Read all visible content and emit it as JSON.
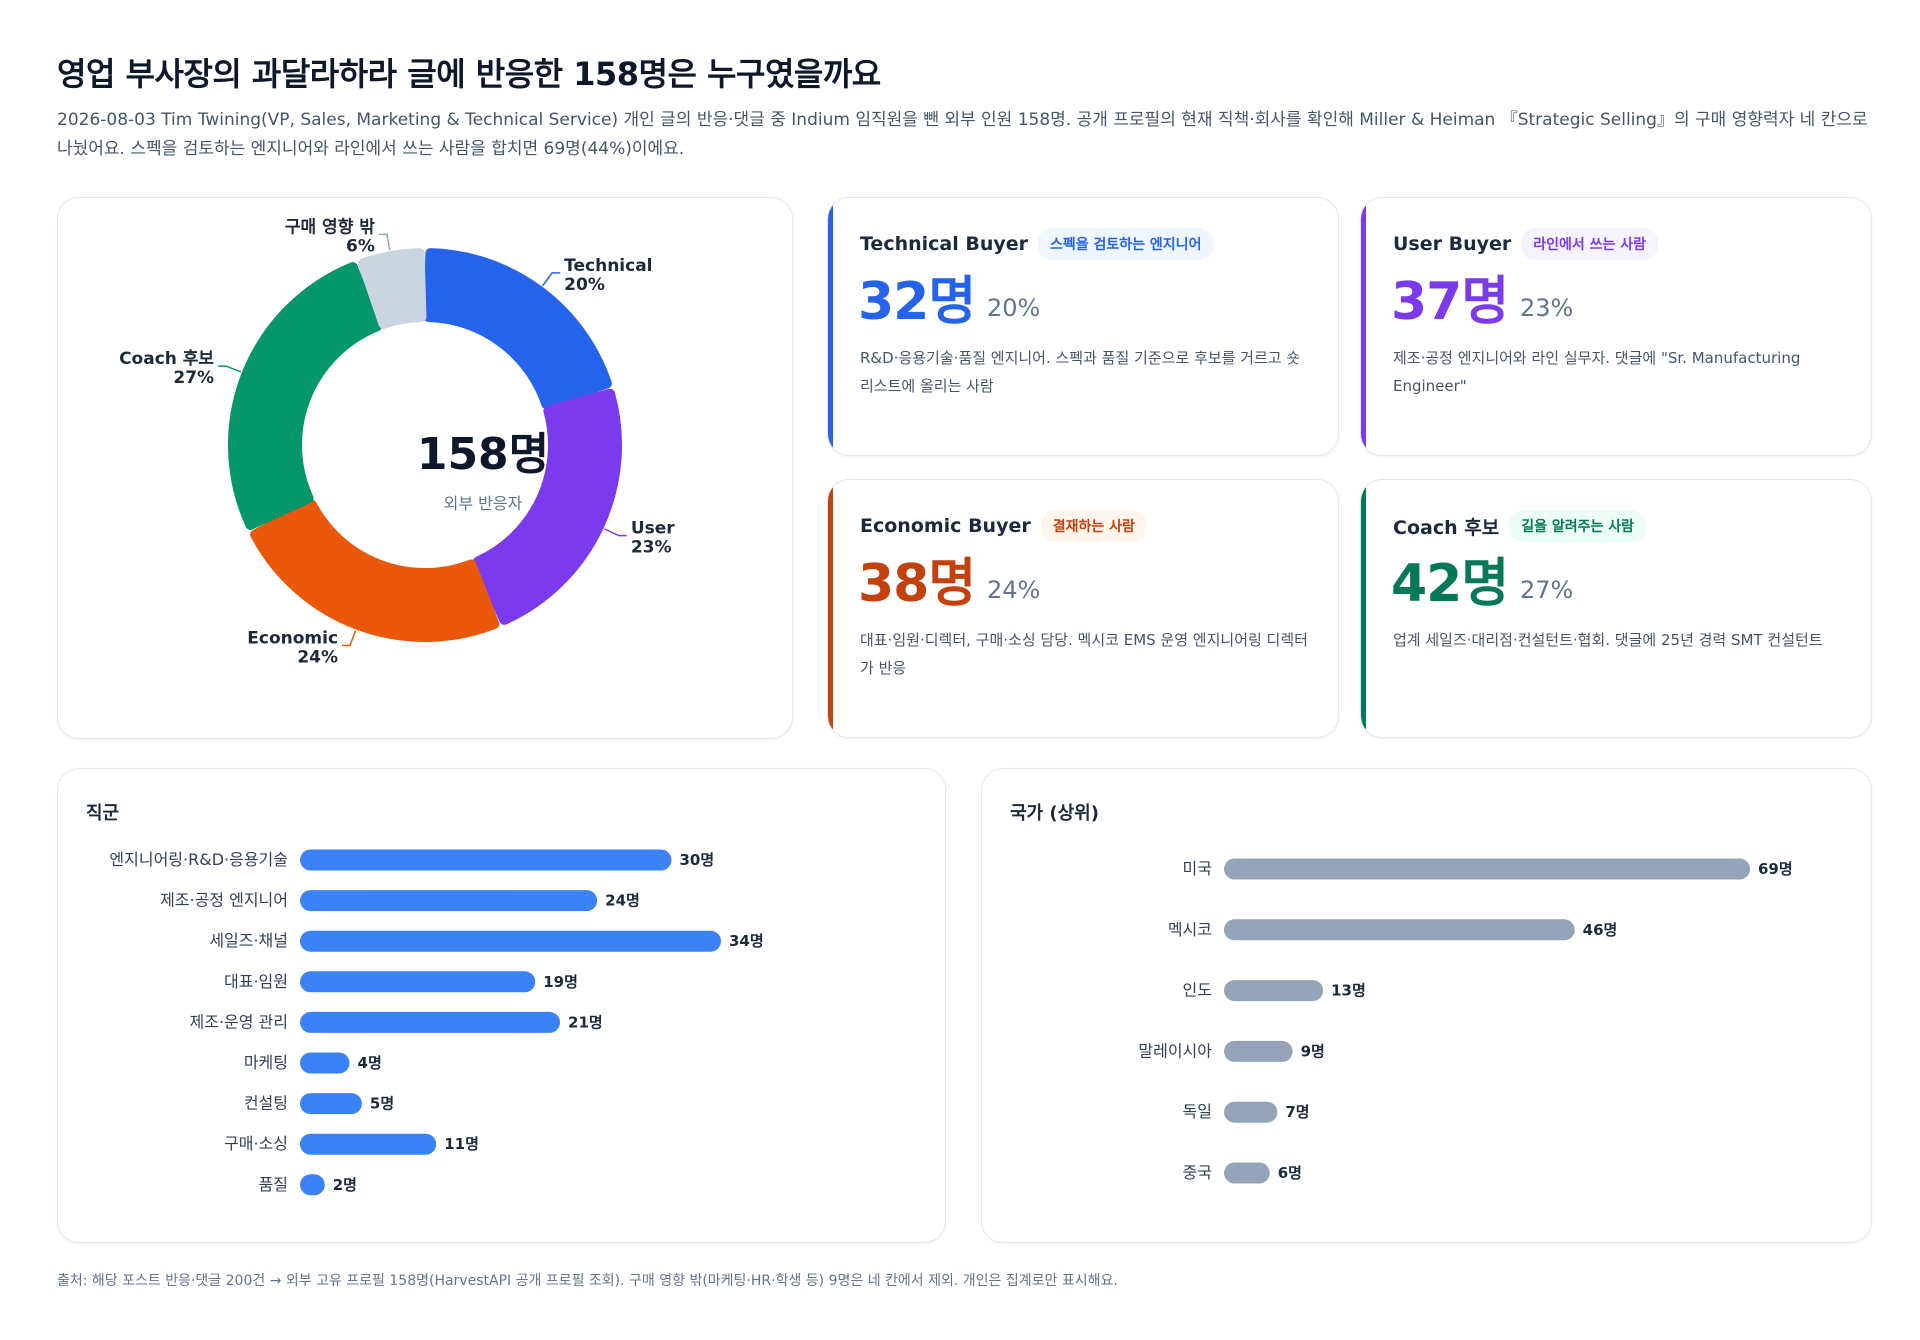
{
  "header": {
    "title": "영업 부사장의 과달라하라 글에 반응한 158명은 누구였을까요",
    "subtitle": "2026-08-03 Tim Twining(VP, Sales, Marketing & Technical Service) 개인 글의 반응·댓글 중 Indium 임직원을 뺀 외부 인원 158명. 공개 프로필의 현재 직책·회사를 확인해 Miller & Heiman 『Strategic Selling』의 구매 영향력자 네 칸으로 나눴어요. 스펙을 검토하는 엔지니어와 라인에서 쓰는 사람을 합치면 69명(44%)이에요."
  },
  "donut": {
    "center_total": "158명",
    "center_label": "외부 반응자",
    "labels": [
      {
        "name": "Technical",
        "pct": "20%"
      },
      {
        "name": "User",
        "pct": "23%"
      },
      {
        "name": "Economic",
        "pct": "24%"
      },
      {
        "name": "Coach 후보",
        "pct": "27%"
      },
      {
        "name": "구매 영향 밖",
        "pct": "6%"
      }
    ]
  },
  "buyers": [
    {
      "name": "Technical Buyer",
      "tag": "스펙을 검토하는 엔지니어",
      "count": "32명",
      "pct": "20%",
      "desc": "R&D·응용기술·품질 엔지니어. 스펙과 품질 기준으로 후보를 거르고 숏리스트에 올리는 사람",
      "color": "#2563eb",
      "tag_bg": "#eff6ff"
    },
    {
      "name": "User Buyer",
      "tag": "라인에서 쓰는 사람",
      "count": "37명",
      "pct": "23%",
      "desc": "제조·공정 엔지니어와 라인 실무자. 댓글에 \"Sr. Manufacturing Engineer\"",
      "color": "#7c3aed",
      "tag_bg": "#f5f3ff"
    },
    {
      "name": "Economic Buyer",
      "tag": "결재하는 사람",
      "count": "38명",
      "pct": "24%",
      "desc": "대표·임원·디렉터, 구매·소싱 담당. 멕시코 EMS 운영 엔지니어링 디렉터가 반응",
      "color": "#c2410c",
      "tag_bg": "#fff7ed"
    },
    {
      "name": "Coach 후보",
      "tag": "길을 알려주는 사람",
      "count": "42명",
      "pct": "27%",
      "desc": "업계 세일즈·대리점·컨설턴트·협회. 댓글에 25년 경력 SMT 컨설턴트",
      "color": "#047857",
      "tag_bg": "#ecfdf5"
    }
  ],
  "job_panel": {
    "title": "직군",
    "value_suffix": "명"
  },
  "country_panel": {
    "title": "국가 (상위)",
    "value_suffix": "명"
  },
  "footer": {
    "note": "출처: 해당 포스트 반응·댓글 200건 → 외부 고유 프로필 158명(HarvestAPI 공개 프로필 조회). 구매 영향 밖(마케팅·HR·학생 등) 9명은 네 칸에서 제외. 개인은 집계로만 표시해요."
  },
  "chart_data": [
    {
      "type": "pie",
      "categories": [
        "Technical",
        "User",
        "Economic",
        "Coach 후보",
        "구매 영향 밖"
      ],
      "values": [
        32,
        37,
        38,
        42,
        9
      ],
      "percent": [
        20,
        23,
        24,
        27,
        6
      ],
      "colors": [
        "#2563eb",
        "#7c3aed",
        "#ea580c",
        "#059669",
        "#cbd5e1"
      ],
      "title": "158명"
    },
    {
      "type": "bar",
      "orientation": "horizontal",
      "title": "직군",
      "categories": [
        "엔지니어링·R&D·응용기술",
        "제조·공정 엔지니어",
        "세일즈·채널",
        "대표·임원",
        "제조·운영 관리",
        "마케팅",
        "컨설팅",
        "구매·소싱",
        "품질"
      ],
      "values": [
        30,
        24,
        34,
        19,
        21,
        4,
        5,
        11,
        2
      ],
      "color": "#3b82f6",
      "xlim": [
        0,
        34
      ]
    },
    {
      "type": "bar",
      "orientation": "horizontal",
      "title": "국가 (상위)",
      "categories": [
        "미국",
        "멕시코",
        "인도",
        "말레이시아",
        "독일",
        "중국"
      ],
      "values": [
        69,
        46,
        13,
        9,
        7,
        6
      ],
      "color": "#94a3b8",
      "xlim": [
        0,
        69
      ]
    }
  ]
}
